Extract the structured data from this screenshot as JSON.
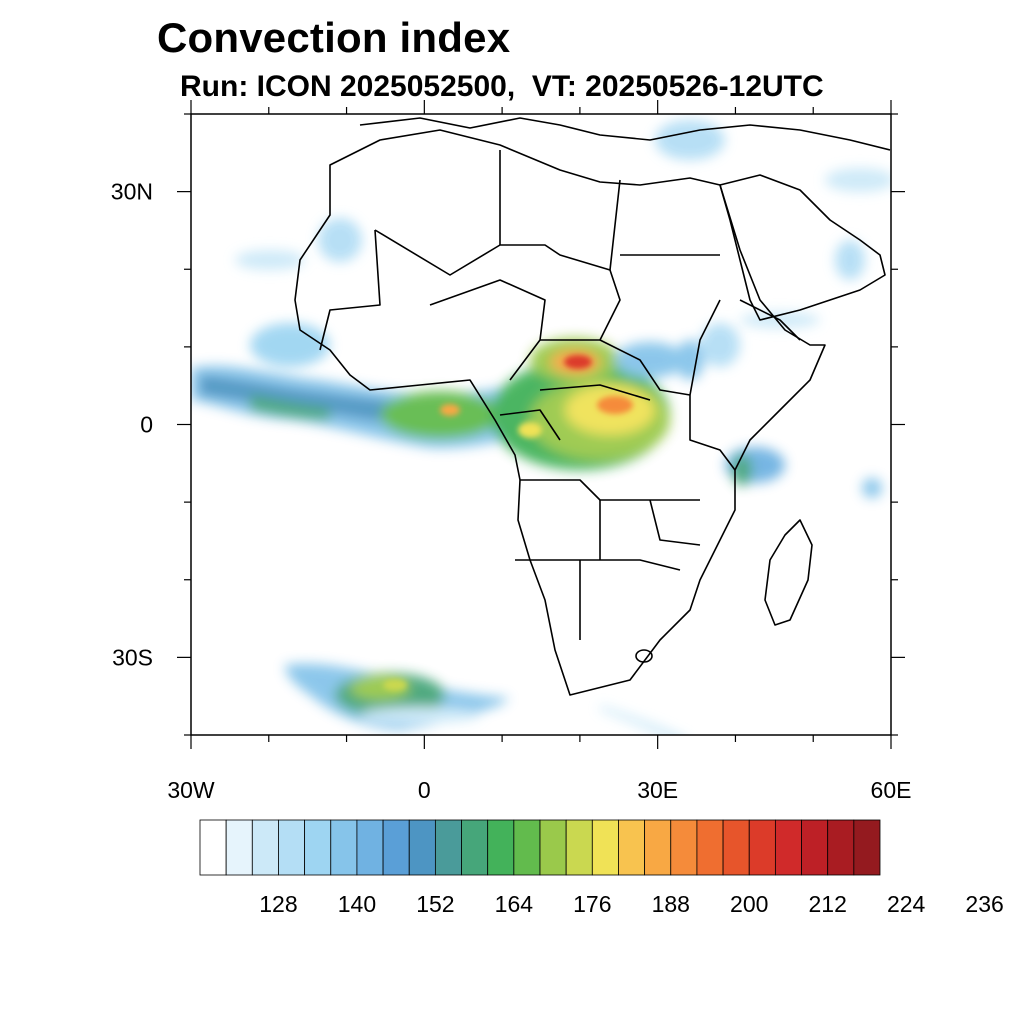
{
  "title": "Convection index",
  "subtitle": "Run: ICON 2025052500,  VT: 20250526-12UTC",
  "map": {
    "lon_range": [
      -30,
      60
    ],
    "lat_range": [
      -40,
      40
    ],
    "lon_ticks": [
      {
        "value": -30,
        "label": "30W"
      },
      {
        "value": 0,
        "label": "0"
      },
      {
        "value": 30,
        "label": "30E"
      },
      {
        "value": 60,
        "label": "60E"
      }
    ],
    "lat_ticks": [
      {
        "value": 30,
        "label": "30N"
      },
      {
        "value": 0,
        "label": "0"
      },
      {
        "value": -30,
        "label": "30S"
      }
    ]
  },
  "colorbar": {
    "colors": [
      "#ffffff",
      "#e6f4fc",
      "#cce9f8",
      "#b4def5",
      "#9ed5f2",
      "#86c4ea",
      "#70b2e2",
      "#5a9fd7",
      "#4d95c3",
      "#4a9b9a",
      "#46a67a",
      "#43b25a",
      "#62bb4d",
      "#9ac94b",
      "#cad850",
      "#f0e256",
      "#f8c34f",
      "#f8a844",
      "#f58b3a",
      "#ef6e30",
      "#e7552b",
      "#dc3b29",
      "#d02a2a",
      "#bd2026",
      "#a91c22",
      "#941a1f"
    ],
    "labels": [
      "128",
      "140",
      "152",
      "164",
      "176",
      "188",
      "200",
      "212",
      "224",
      "236"
    ]
  }
}
